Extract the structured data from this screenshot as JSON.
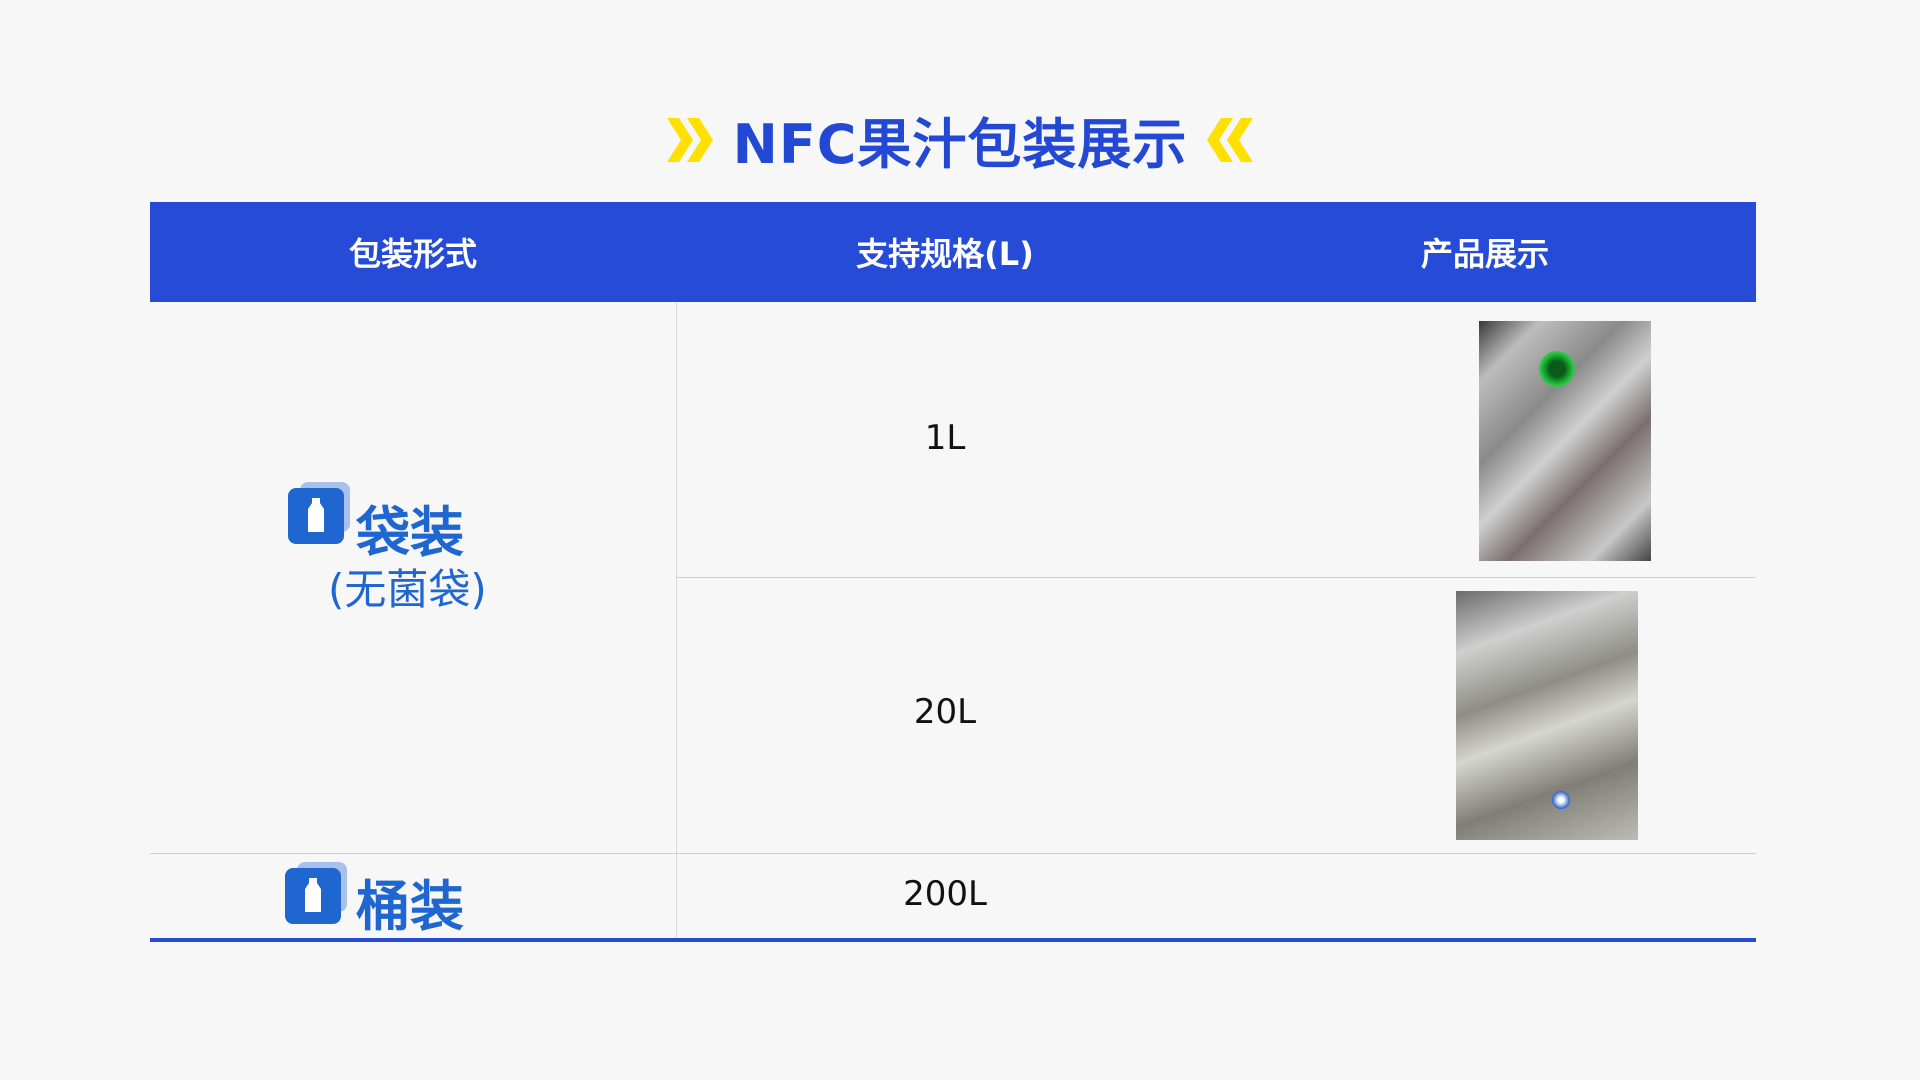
{
  "title": {
    "text": "NFC果汁包装展示",
    "left_icon": "double-chevron-right-icon",
    "right_icon": "double-chevron-left-icon",
    "accent": "#FFE000",
    "color": "#2349D4"
  },
  "table": {
    "headers": [
      "包装形式",
      "支持规格(L)",
      "产品展示"
    ],
    "header_color": "#264BD6",
    "groups": [
      {
        "label": "袋装",
        "sublabel": "(无菌袋)",
        "icon": "bottle-icon",
        "rows": [
          {
            "spec": "1L",
            "image": "1L aseptic bag"
          },
          {
            "spec": "20L",
            "image": "20L aseptic bag"
          }
        ]
      },
      {
        "label": "桶装",
        "icon": "bottle-icon",
        "rows": [
          {
            "spec": "200L"
          }
        ]
      }
    ]
  }
}
